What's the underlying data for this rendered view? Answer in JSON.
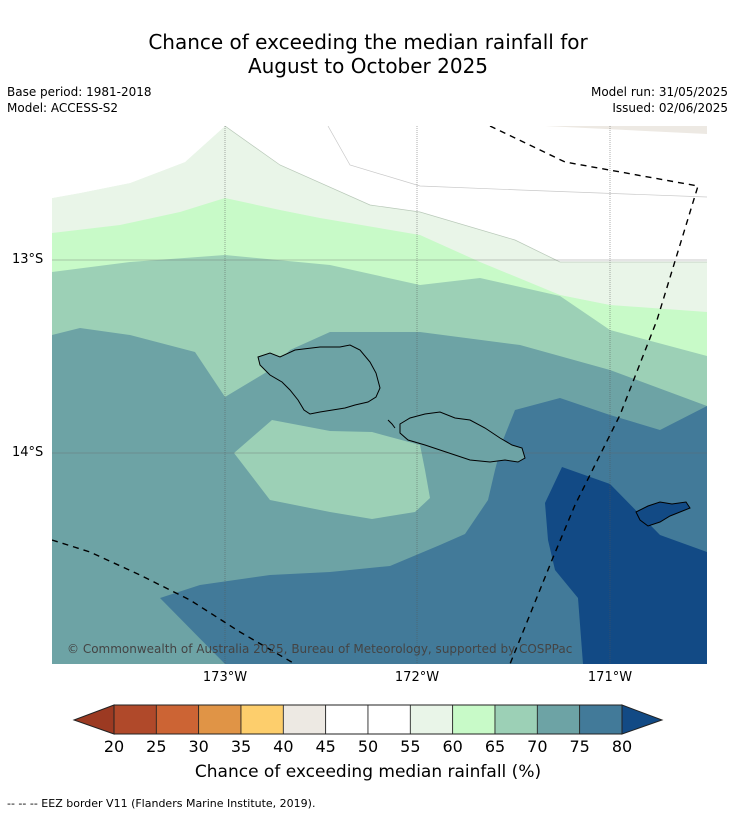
{
  "title_line1": "Chance of exceeding the median rainfall for",
  "title_line2": "August to October 2025",
  "meta": {
    "base_period": "Base period: 1981-2018",
    "model": "Model: ACCESS-S2",
    "model_run": "Model run: 31/05/2025",
    "issued": "Issued: 02/06/2025"
  },
  "map": {
    "lat_labels": [
      "13°S",
      "14°S"
    ],
    "lon_labels": [
      "173°W",
      "172°W",
      "171°W"
    ],
    "copyright": "© Commonwealth of Australia 2025, Bureau of Meteorology, supported by COSPPac"
  },
  "colorbar": {
    "ticks": [
      "20",
      "25",
      "30",
      "35",
      "40",
      "45",
      "50",
      "55",
      "60",
      "65",
      "70",
      "75",
      "80"
    ],
    "colors": [
      "#b0492a",
      "#cc6434",
      "#e09446",
      "#fdce6c",
      "#ede9e3",
      "#ffffff",
      "#ffffff",
      "#e9f5e8",
      "#c8fac8",
      "#9cd0b6",
      "#6da3a5",
      "#427a99"
    ],
    "low_color": "#9c3a22",
    "high_color": "#124a85",
    "label": "Chance of exceeding median rainfall (%)"
  },
  "footnote": "--  --  -- EEZ border V11 (Flanders Marine Institute, 2019)."
}
